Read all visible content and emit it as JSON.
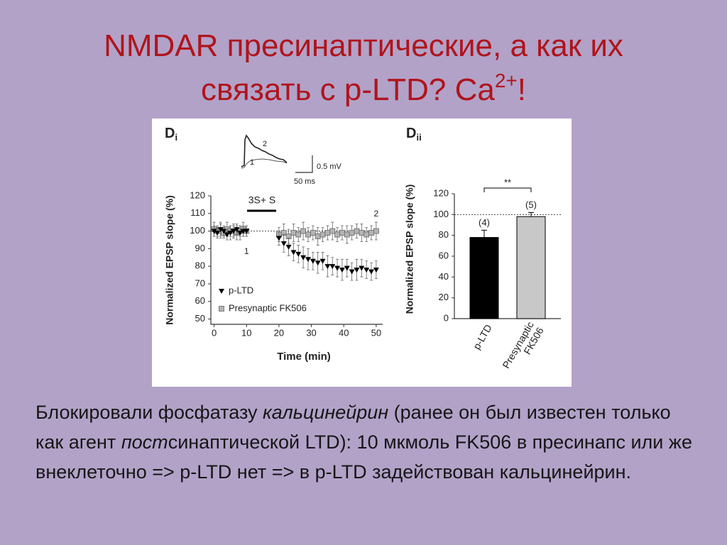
{
  "slide": {
    "title": {
      "lines": [
        "NMDAR пресинаптические, а как их",
        "связать с p-LTD? Ca"
      ],
      "superscript": "2+",
      "end": "!"
    },
    "body": [
      {
        "text": "Блокировали фосфатазу ",
        "italic": false
      },
      {
        "text": "кальцинейрин",
        "italic": true
      },
      {
        "text": " (ранее он был известен только как агент ",
        "italic": false
      },
      {
        "text": "пост",
        "italic": true
      },
      {
        "text": "синаптической LTD): 10 мкмоль FK506 в пресинапс или же внеклеточно => p-LTD нет => в p-LTD задействован кальцинейрин.",
        "italic": false
      }
    ]
  },
  "chart_data": [
    {
      "type": "scatter",
      "panel_label": "D",
      "panel_sub": "i",
      "xlabel": "Time (min)",
      "ylabel": "Normalized EPSP slope (%)",
      "xlim": [
        -1,
        52
      ],
      "ylim": [
        47,
        120
      ],
      "xticks": [
        0,
        10,
        20,
        30,
        40,
        50
      ],
      "yticks": [
        50,
        60,
        70,
        80,
        90,
        100,
        110,
        120
      ],
      "reference_line": 100,
      "stimulus_label": "3S+ S",
      "point_labels": [
        "1",
        "2"
      ],
      "inset": {
        "labels": [
          "1",
          "2"
        ],
        "scale_y": "0.5 mV",
        "scale_x": "50 ms"
      },
      "series": [
        {
          "name": "Presynaptic FK506",
          "marker": "square",
          "color": "#b4b4b4",
          "x": [
            0,
            1,
            2,
            3,
            4,
            5,
            6,
            7,
            8,
            9,
            10,
            20,
            21.5,
            23,
            24.5,
            26,
            27.5,
            29,
            30.5,
            32,
            33.5,
            35,
            36.5,
            38,
            39.5,
            41,
            42.5,
            44,
            45.5,
            47,
            48.5,
            50
          ],
          "values": [
            101,
            100,
            100,
            99,
            101,
            100,
            100,
            99,
            100,
            101,
            100,
            98,
            99,
            97,
            99,
            98,
            100,
            98,
            99,
            97,
            98,
            99,
            100,
            98,
            99,
            98,
            99,
            100,
            99,
            98,
            99,
            100
          ],
          "errors": [
            4,
            3,
            4,
            3,
            4,
            3,
            4,
            4,
            3,
            4,
            3,
            4,
            5,
            4,
            5,
            4,
            5,
            4,
            4,
            5,
            4,
            4,
            5,
            4,
            4,
            5,
            4,
            4,
            5,
            4,
            4,
            5
          ]
        },
        {
          "name": "p-LTD",
          "marker": "triangle-down",
          "color": "#000000",
          "x": [
            0,
            1,
            2,
            3,
            4,
            5,
            6,
            7,
            8,
            9,
            10,
            20,
            21.5,
            23,
            24.5,
            26,
            27.5,
            29,
            30.5,
            32,
            33.5,
            35,
            36.5,
            38,
            39.5,
            41,
            42.5,
            44,
            45.5,
            47,
            48.5,
            50
          ],
          "values": [
            100,
            99,
            101,
            100,
            98,
            99,
            100,
            101,
            99,
            100,
            100,
            96,
            93,
            91,
            88,
            87,
            85,
            84,
            83,
            82,
            83,
            80,
            80,
            79,
            78,
            79,
            77,
            78,
            79,
            78,
            77,
            78
          ],
          "errors": [
            3,
            3,
            4,
            3,
            3,
            4,
            3,
            3,
            4,
            3,
            3,
            4,
            5,
            5,
            5,
            5,
            6,
            6,
            5,
            6,
            5,
            6,
            5,
            5,
            6,
            5,
            5,
            6,
            5,
            5,
            5,
            5
          ]
        }
      ]
    },
    {
      "type": "bar",
      "panel_label": "D",
      "panel_sub": "ii",
      "ylabel": "Normalized EPSP slope (%)",
      "categories": [
        [
          "p-LTD"
        ],
        [
          "Presynaptic",
          "FK506"
        ]
      ],
      "values": [
        78,
        98
      ],
      "errors": [
        7,
        4
      ],
      "n_labels": [
        "(4)",
        "(5)"
      ],
      "colors": [
        "#000000",
        "#c8c8c8"
      ],
      "significance": "**",
      "ylim": [
        0,
        120
      ],
      "yticks": [
        0,
        20,
        40,
        60,
        80,
        100,
        120
      ],
      "reference_line": 100
    }
  ]
}
